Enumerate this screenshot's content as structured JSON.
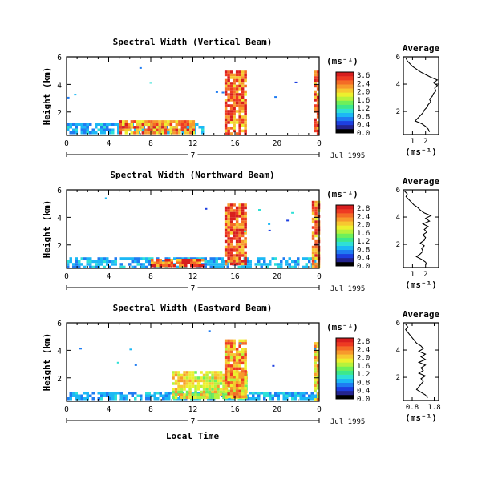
{
  "colorscale": {
    "colors": [
      "#000000",
      "#24248f",
      "#1d3fe0",
      "#1f7cf2",
      "#1cb8f5",
      "#2ee0d6",
      "#3ce88c",
      "#6ef05a",
      "#b6f23c",
      "#ecf02e",
      "#f7c830",
      "#f79a2c",
      "#f46c26",
      "#ee3a22",
      "#d81e1e"
    ]
  },
  "panels": [
    {
      "title": "Spectral Width (Vertical Beam)",
      "ylabel": "Height (km)",
      "yticks": [
        "6",
        "4",
        "2"
      ],
      "xticks": [
        "0",
        "4",
        "8",
        "12",
        "16",
        "20",
        "0"
      ],
      "day_label": "7",
      "date_label": "Jul 1995",
      "unit_label": "(ms⁻¹)",
      "cbar_ticks": [
        "3.6",
        "2.4",
        "2.0",
        "1.6",
        "1.2",
        "0.8",
        "0.4",
        "0.0"
      ],
      "avg_title": "Average",
      "avg_yticks": [
        "6",
        "4",
        "2"
      ],
      "avg_xticks": [
        "1",
        "2"
      ],
      "avg_xlabel": "(ms⁻¹)",
      "avg_xrange": [
        0.3,
        3.0
      ],
      "avg_profile": [
        [
          0.5,
          2.3
        ],
        [
          0.7,
          2.2
        ],
        [
          0.9,
          2.0
        ],
        [
          1.1,
          1.7
        ],
        [
          1.3,
          1.2
        ],
        [
          1.5,
          1.4
        ],
        [
          1.7,
          1.6
        ],
        [
          1.9,
          1.8
        ],
        [
          2.1,
          1.9
        ],
        [
          2.3,
          2.1
        ],
        [
          2.5,
          2.2
        ],
        [
          2.7,
          2.4
        ],
        [
          2.9,
          2.3
        ],
        [
          3.1,
          2.5
        ],
        [
          3.3,
          2.6
        ],
        [
          3.5,
          2.8
        ],
        [
          3.7,
          2.7
        ],
        [
          3.9,
          2.9
        ],
        [
          4.1,
          2.6
        ],
        [
          4.3,
          2.9
        ],
        [
          4.5,
          2.4
        ],
        [
          4.7,
          2.0
        ],
        [
          4.9,
          1.6
        ],
        [
          5.1,
          1.3
        ],
        [
          5.3,
          1.0
        ],
        [
          5.5,
          0.8
        ],
        [
          5.7,
          0.6
        ],
        [
          5.9,
          0.5
        ]
      ]
    },
    {
      "title": "Spectral Width (Northward Beam)",
      "ylabel": "Height (km)",
      "yticks": [
        "6",
        "4",
        "2"
      ],
      "xticks": [
        "0",
        "4",
        "8",
        "12",
        "16",
        "20",
        "0"
      ],
      "day_label": "7",
      "date_label": "Jul 1995",
      "unit_label": "(ms⁻¹)",
      "cbar_ticks": [
        "2.8",
        "2.4",
        "2.0",
        "1.6",
        "1.2",
        "0.8",
        "0.4",
        "0.0"
      ],
      "avg_title": "Average",
      "avg_yticks": [
        "6",
        "4",
        "2"
      ],
      "avg_xticks": [
        "1",
        "2"
      ],
      "avg_xlabel": "(ms⁻¹)",
      "avg_xrange": [
        0.3,
        3.0
      ],
      "avg_profile": [
        [
          0.5,
          2.1
        ],
        [
          0.7,
          2.0
        ],
        [
          0.9,
          1.7
        ],
        [
          1.1,
          1.3
        ],
        [
          1.3,
          1.6
        ],
        [
          1.5,
          1.8
        ],
        [
          1.7,
          1.7
        ],
        [
          1.9,
          1.9
        ],
        [
          2.1,
          1.6
        ],
        [
          2.3,
          1.9
        ],
        [
          2.5,
          2.0
        ],
        [
          2.7,
          1.8
        ],
        [
          2.9,
          2.1
        ],
        [
          3.1,
          1.9
        ],
        [
          3.3,
          2.2
        ],
        [
          3.5,
          1.8
        ],
        [
          3.7,
          2.3
        ],
        [
          3.9,
          2.0
        ],
        [
          4.1,
          2.4
        ],
        [
          4.3,
          1.9
        ],
        [
          4.5,
          1.6
        ],
        [
          4.7,
          1.4
        ],
        [
          4.9,
          1.1
        ],
        [
          5.1,
          0.9
        ],
        [
          5.3,
          0.7
        ],
        [
          5.5,
          0.5
        ],
        [
          5.7,
          0.6
        ],
        [
          5.9,
          0.4
        ]
      ]
    },
    {
      "title": "Spectral Width (Eastward Beam)",
      "ylabel": "Height (km)",
      "yticks": [
        "6",
        "4",
        "2"
      ],
      "xticks": [
        "0",
        "4",
        "8",
        "12",
        "16",
        "20",
        "0"
      ],
      "day_label": "7",
      "date_label": "Jul 1995",
      "unit_label": "(ms⁻¹)",
      "cbar_ticks": [
        "2.8",
        "2.4",
        "2.0",
        "1.6",
        "1.2",
        "0.8",
        "0.4",
        "0.0"
      ],
      "avg_title": "Average",
      "avg_yticks": [
        "6",
        "4",
        "2"
      ],
      "avg_xticks": [
        "0.8",
        "1.8"
      ],
      "avg_xlabel": "(ms⁻¹)",
      "avg_xrange": [
        0.4,
        2.0
      ],
      "avg_profile": [
        [
          0.5,
          1.5
        ],
        [
          0.7,
          1.4
        ],
        [
          0.9,
          1.2
        ],
        [
          1.1,
          1.0
        ],
        [
          1.3,
          1.1
        ],
        [
          1.5,
          1.2
        ],
        [
          1.7,
          1.3
        ],
        [
          1.9,
          1.2
        ],
        [
          2.1,
          1.4
        ],
        [
          2.3,
          1.1
        ],
        [
          2.5,
          1.3
        ],
        [
          2.7,
          1.2
        ],
        [
          2.9,
          1.4
        ],
        [
          3.1,
          1.1
        ],
        [
          3.3,
          1.4
        ],
        [
          3.5,
          1.2
        ],
        [
          3.7,
          1.4
        ],
        [
          3.9,
          1.1
        ],
        [
          4.1,
          1.3
        ],
        [
          4.3,
          1.2
        ],
        [
          4.5,
          1.0
        ],
        [
          4.7,
          0.9
        ],
        [
          4.9,
          0.8
        ],
        [
          5.1,
          0.7
        ],
        [
          5.3,
          0.6
        ],
        [
          5.5,
          0.5
        ],
        [
          5.7,
          0.6
        ],
        [
          5.9,
          0.5
        ]
      ]
    }
  ],
  "xlabel": "Local Time",
  "chart_data": [
    {
      "type": "heatmap",
      "title": "Spectral Width (Vertical Beam)",
      "xlabel": "",
      "ylabel": "Height (km)",
      "colorbar_label": "(ms⁻¹)",
      "xticks": [
        "0",
        "4",
        "8",
        "12",
        "16",
        "20",
        "0"
      ],
      "date": "7 Jul 1995",
      "xlim_hours": [
        0,
        24
      ],
      "ylim_km": [
        0.3,
        6.0
      ],
      "color_range": [
        0.0,
        3.6
      ],
      "blobs": [
        {
          "hours": [
            0,
            13
          ],
          "heights_km": [
            0.4,
            1.2
          ],
          "width": 1.0
        },
        {
          "hours": [
            5,
            12
          ],
          "heights_km": [
            0.4,
            1.4
          ],
          "width": 3.0
        },
        {
          "hours": [
            15,
            17
          ],
          "heights_km": [
            0.5,
            5.0
          ],
          "width": 3.2
        },
        {
          "hours": [
            23.5,
            24
          ],
          "heights_km": [
            0.5,
            5.0
          ],
          "width": 3.2
        }
      ]
    },
    {
      "type": "heatmap",
      "title": "Spectral Width (Northward Beam)",
      "xlabel": "",
      "ylabel": "Height (km)",
      "colorbar_label": "(ms⁻¹)",
      "xticks": [
        "0",
        "4",
        "8",
        "12",
        "16",
        "20",
        "0"
      ],
      "date": "7 Jul 1995",
      "xlim_hours": [
        0,
        24
      ],
      "ylim_km": [
        0.3,
        6.0
      ],
      "color_range": [
        0.0,
        2.8
      ],
      "blobs": [
        {
          "hours": [
            0,
            24
          ],
          "heights_km": [
            0.4,
            1.1
          ],
          "width": 0.8
        },
        {
          "hours": [
            8,
            13
          ],
          "heights_km": [
            0.4,
            1.0
          ],
          "width": 2.6
        },
        {
          "hours": [
            15,
            17
          ],
          "heights_km": [
            0.6,
            5.0
          ],
          "width": 2.6
        },
        {
          "hours": [
            23.3,
            24
          ],
          "heights_km": [
            0.5,
            5.2
          ],
          "width": 2.4
        }
      ]
    },
    {
      "type": "heatmap",
      "title": "Spectral Width (Eastward Beam)",
      "xlabel": "Local Time",
      "ylabel": "Height (km)",
      "colorbar_label": "(ms⁻¹)",
      "xticks": [
        "0",
        "4",
        "8",
        "12",
        "16",
        "20",
        "0"
      ],
      "date": "7 Jul 1995",
      "xlim_hours": [
        0,
        24
      ],
      "ylim_km": [
        0.3,
        6.0
      ],
      "color_range": [
        0.0,
        2.8
      ],
      "blobs": [
        {
          "hours": [
            0,
            24
          ],
          "heights_km": [
            0.4,
            1.0
          ],
          "width": 0.8
        },
        {
          "hours": [
            10,
            17
          ],
          "heights_km": [
            0.5,
            2.5
          ],
          "width": 1.8
        },
        {
          "hours": [
            15,
            17
          ],
          "heights_km": [
            0.6,
            4.8
          ],
          "width": 2.2
        },
        {
          "hours": [
            23.5,
            24
          ],
          "heights_km": [
            0.5,
            4.6
          ],
          "width": 2.0
        }
      ]
    }
  ]
}
